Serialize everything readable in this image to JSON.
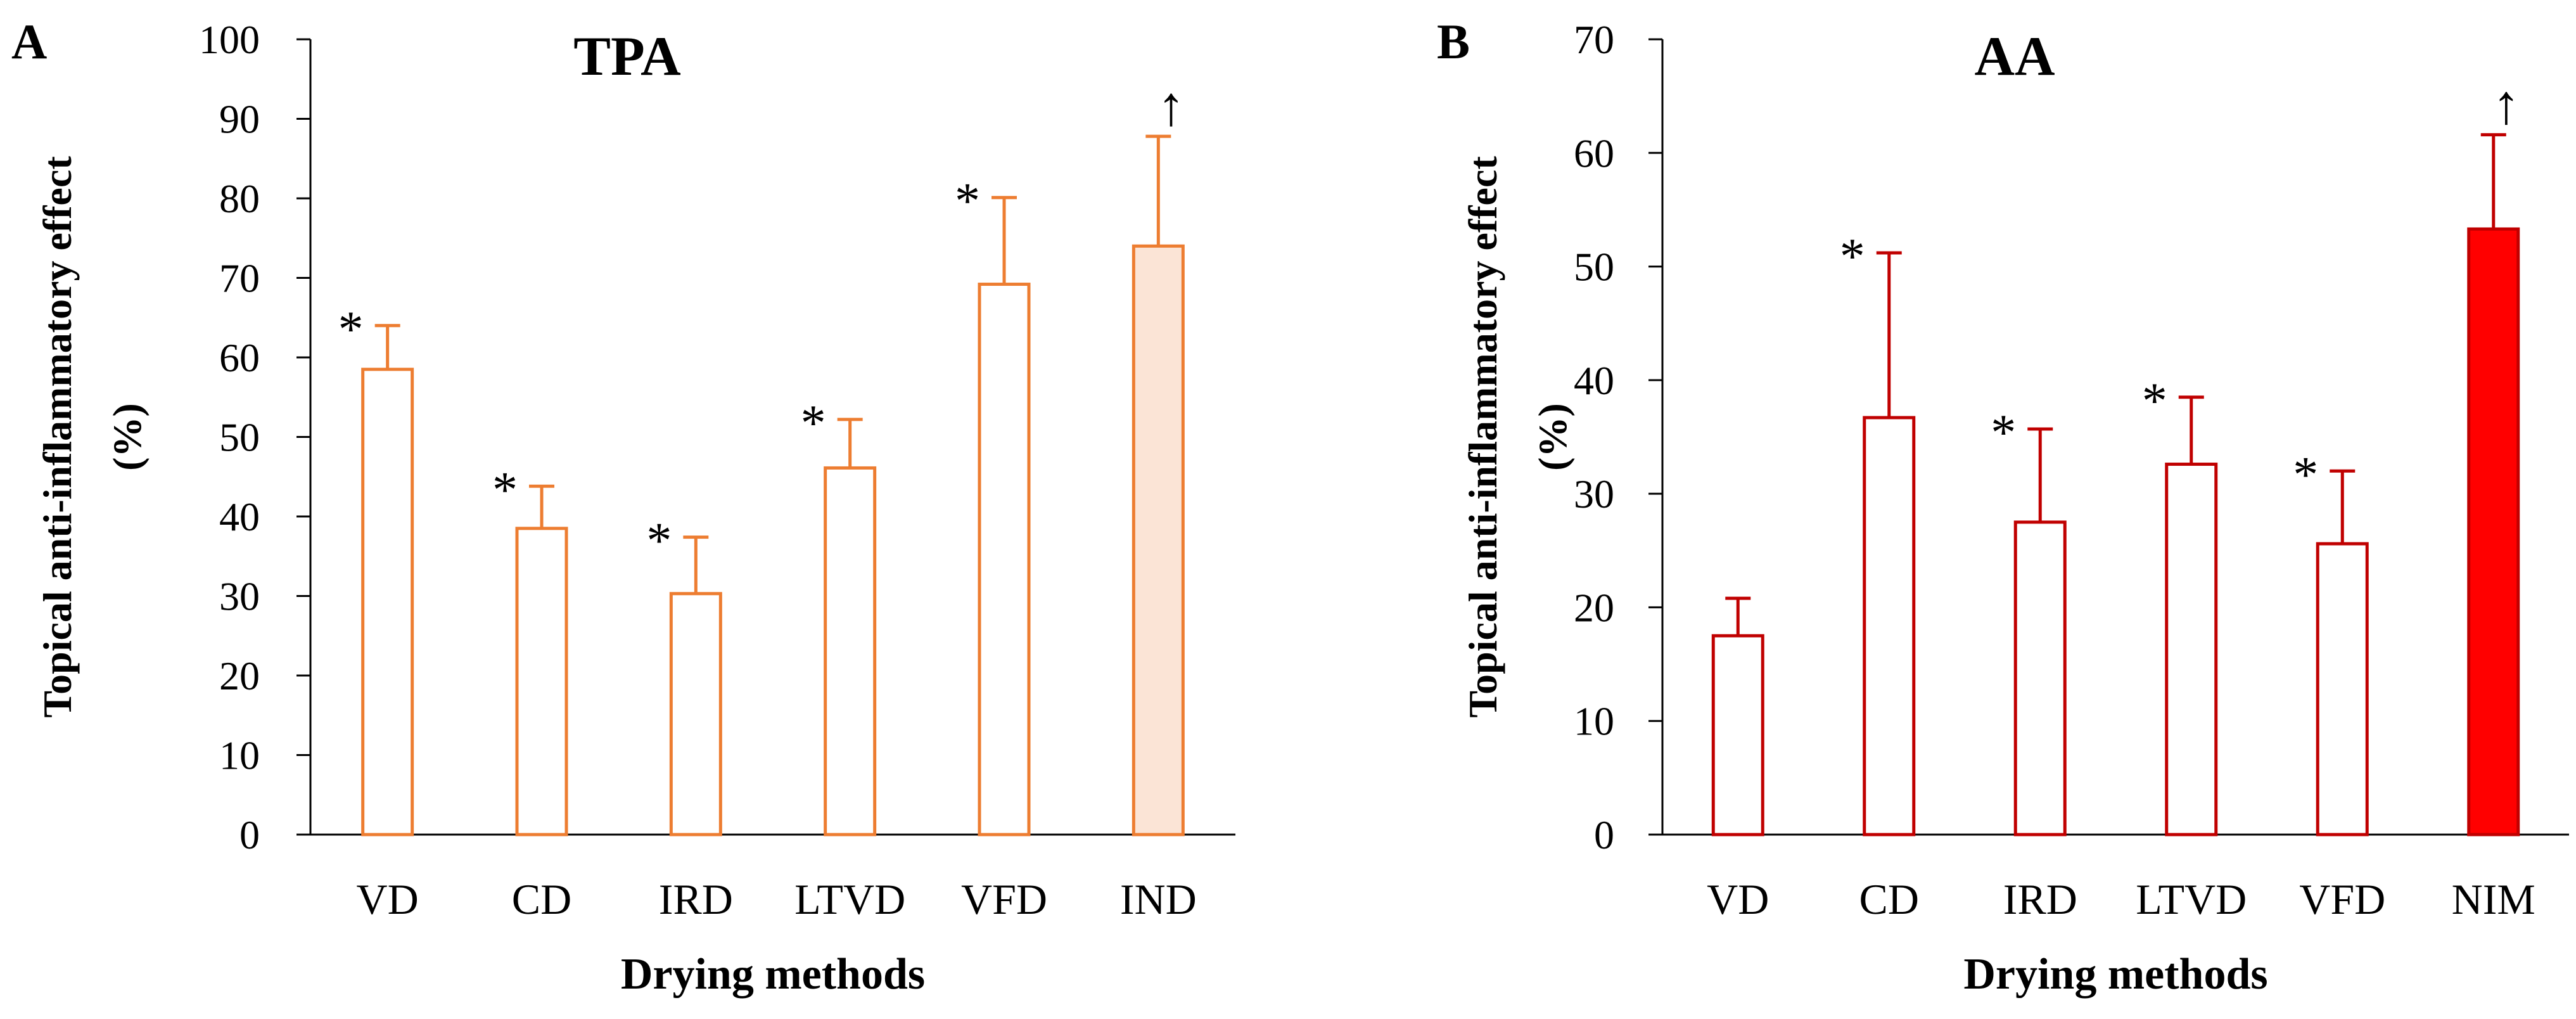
{
  "colors": {
    "tpa": "#ed7d31",
    "tpa_fill": "#fbe4d6",
    "aa": "#c00000",
    "aa_fill": "#ff0000",
    "axis": "#000000"
  },
  "chart_data": [
    {
      "type": "bar",
      "panel": "A",
      "title": "TPA",
      "xlabel": "Drying methods",
      "ylabel_line1": "Topical anti-inflammatory effect",
      "ylabel_line2": "(%)",
      "ylim": [
        0,
        100
      ],
      "ytick_step": 10,
      "categories": [
        "VD",
        "CD",
        "IRD",
        "LTVD",
        "VFD",
        "IND"
      ],
      "values": [
        58.5,
        38.5,
        30.3,
        46.1,
        69.2,
        74.0
      ],
      "errors": [
        5.5,
        5.3,
        7.1,
        6.1,
        10.9,
        13.8
      ],
      "markers": [
        "*",
        "*",
        "*",
        "*",
        "*",
        "↑"
      ],
      "filled": [
        false,
        false,
        false,
        false,
        false,
        true
      ],
      "color_key": "tpa",
      "fill_key": "tpa_fill"
    },
    {
      "type": "bar",
      "panel": "B",
      "title": "AA",
      "xlabel": "Drying methods",
      "ylabel_line1": "Topical anti-inflammatory effect",
      "ylabel_line2": "(%)",
      "ylim": [
        0,
        70
      ],
      "ytick_step": 10,
      "categories": [
        "VD",
        "CD",
        "IRD",
        "LTVD",
        "VFD",
        "NIM"
      ],
      "values": [
        17.5,
        36.7,
        27.5,
        32.6,
        25.6,
        53.3
      ],
      "errors": [
        3.3,
        14.5,
        8.2,
        5.9,
        6.4,
        8.3
      ],
      "markers": [
        "",
        "*",
        "*",
        "*",
        "*",
        "↑"
      ],
      "filled": [
        false,
        false,
        false,
        false,
        false,
        true
      ],
      "color_key": "aa",
      "fill_key": "aa_fill"
    }
  ]
}
